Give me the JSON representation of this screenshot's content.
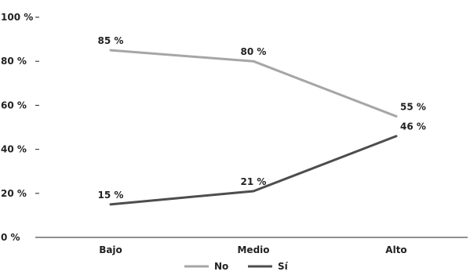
{
  "chart_data": {
    "type": "line",
    "title": "",
    "xlabel": "",
    "ylabel": "",
    "categories": [
      "Bajo",
      "Medio",
      "Alto"
    ],
    "ylim": [
      0,
      100
    ],
    "yticks": [
      0,
      20,
      40,
      60,
      80,
      100
    ],
    "ytick_labels": [
      "0 %",
      "20 %",
      "40 %",
      "60 %",
      "80 %",
      "100 %"
    ],
    "grid": false,
    "legend_position": "bottom",
    "series": [
      {
        "name": "No",
        "color": "#a6a6a6",
        "values": [
          85,
          80,
          55
        ],
        "labels": [
          "85 %",
          "80 %",
          "55 %"
        ]
      },
      {
        "name": "Sí",
        "color": "#4d4d4d",
        "values": [
          15,
          21,
          46
        ],
        "labels": [
          "15 %",
          "21 %",
          "46 %"
        ]
      }
    ]
  }
}
